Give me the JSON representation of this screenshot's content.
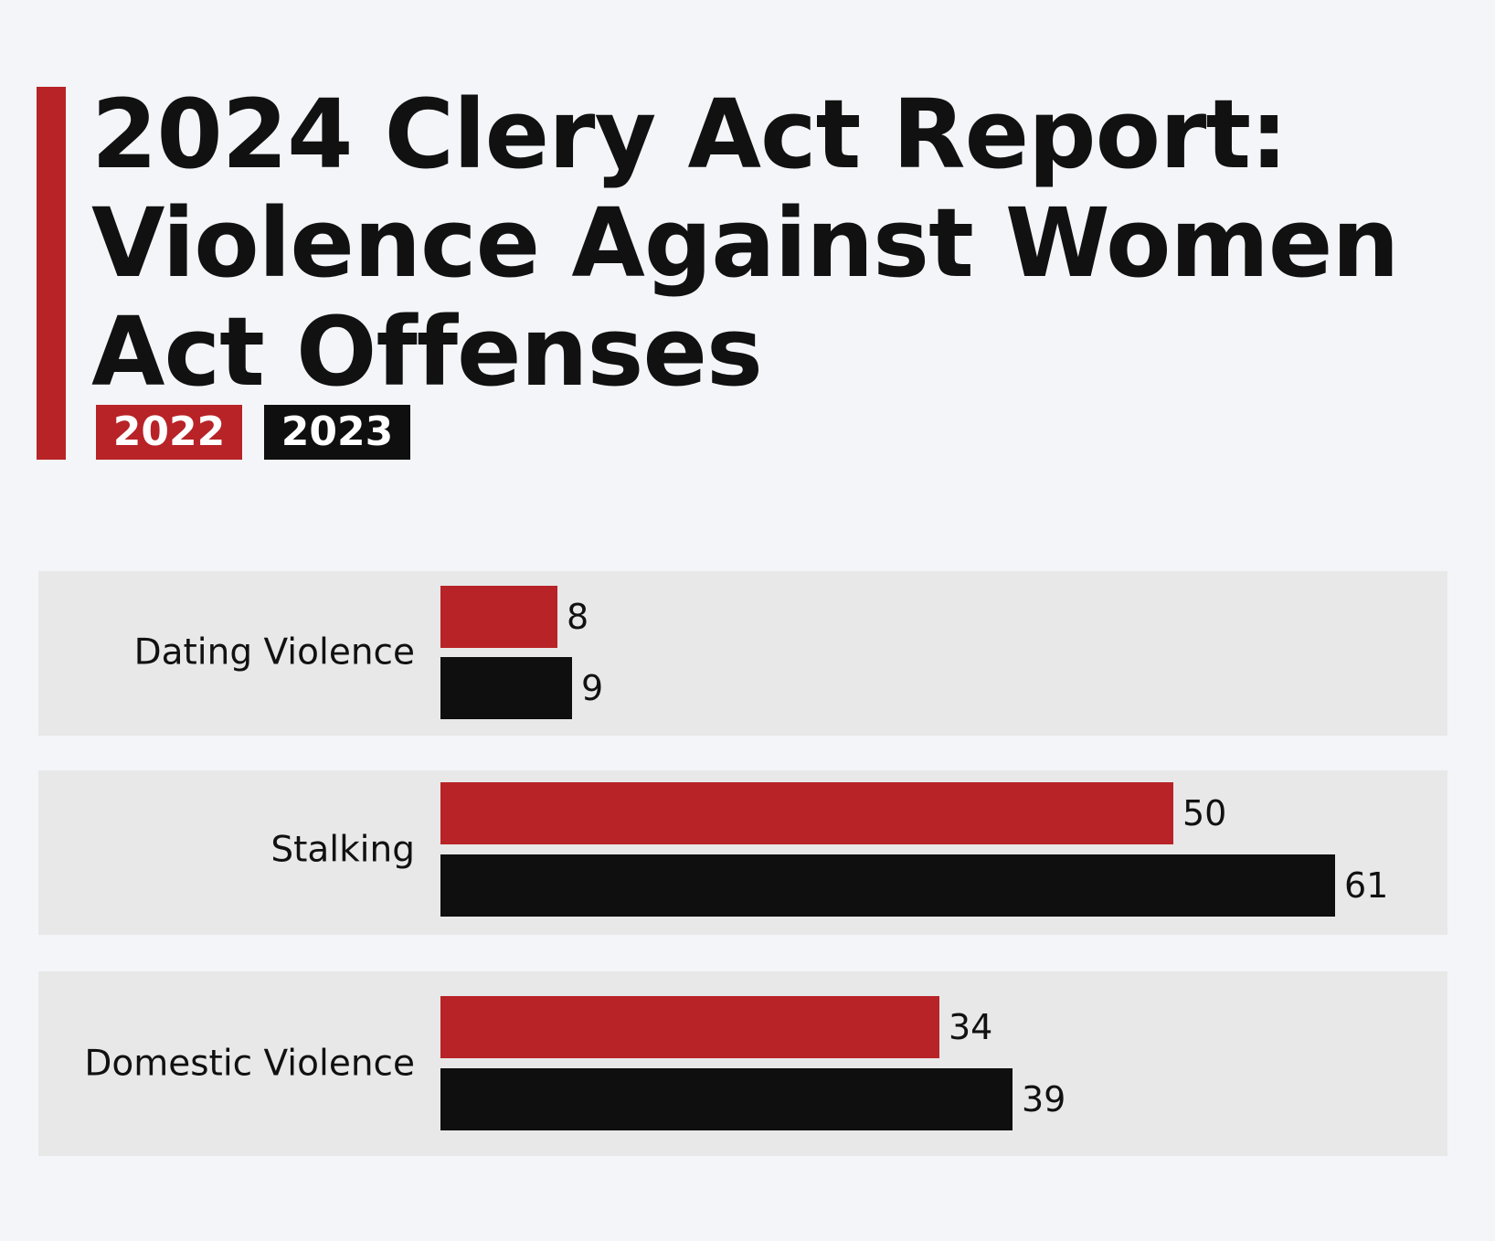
{
  "colors": {
    "accent": "#b82327",
    "year_2022": "#b82327",
    "year_2023": "#0f0f0f"
  },
  "chart_data": {
    "type": "bar",
    "orientation": "horizontal",
    "title_lines": [
      "2024 Clery Act Report:",
      "Violence Against Women",
      "Act Offenses"
    ],
    "categories": [
      "Dating Violence",
      "Stalking",
      "Domestic Violence"
    ],
    "series": [
      {
        "name": "2022",
        "color": "#b82327",
        "values": [
          8,
          50,
          34
        ]
      },
      {
        "name": "2023",
        "color": "#0f0f0f",
        "values": [
          9,
          61,
          39
        ]
      }
    ],
    "xlim": [
      0,
      61
    ],
    "grid": false,
    "legend_position": "top-left"
  }
}
